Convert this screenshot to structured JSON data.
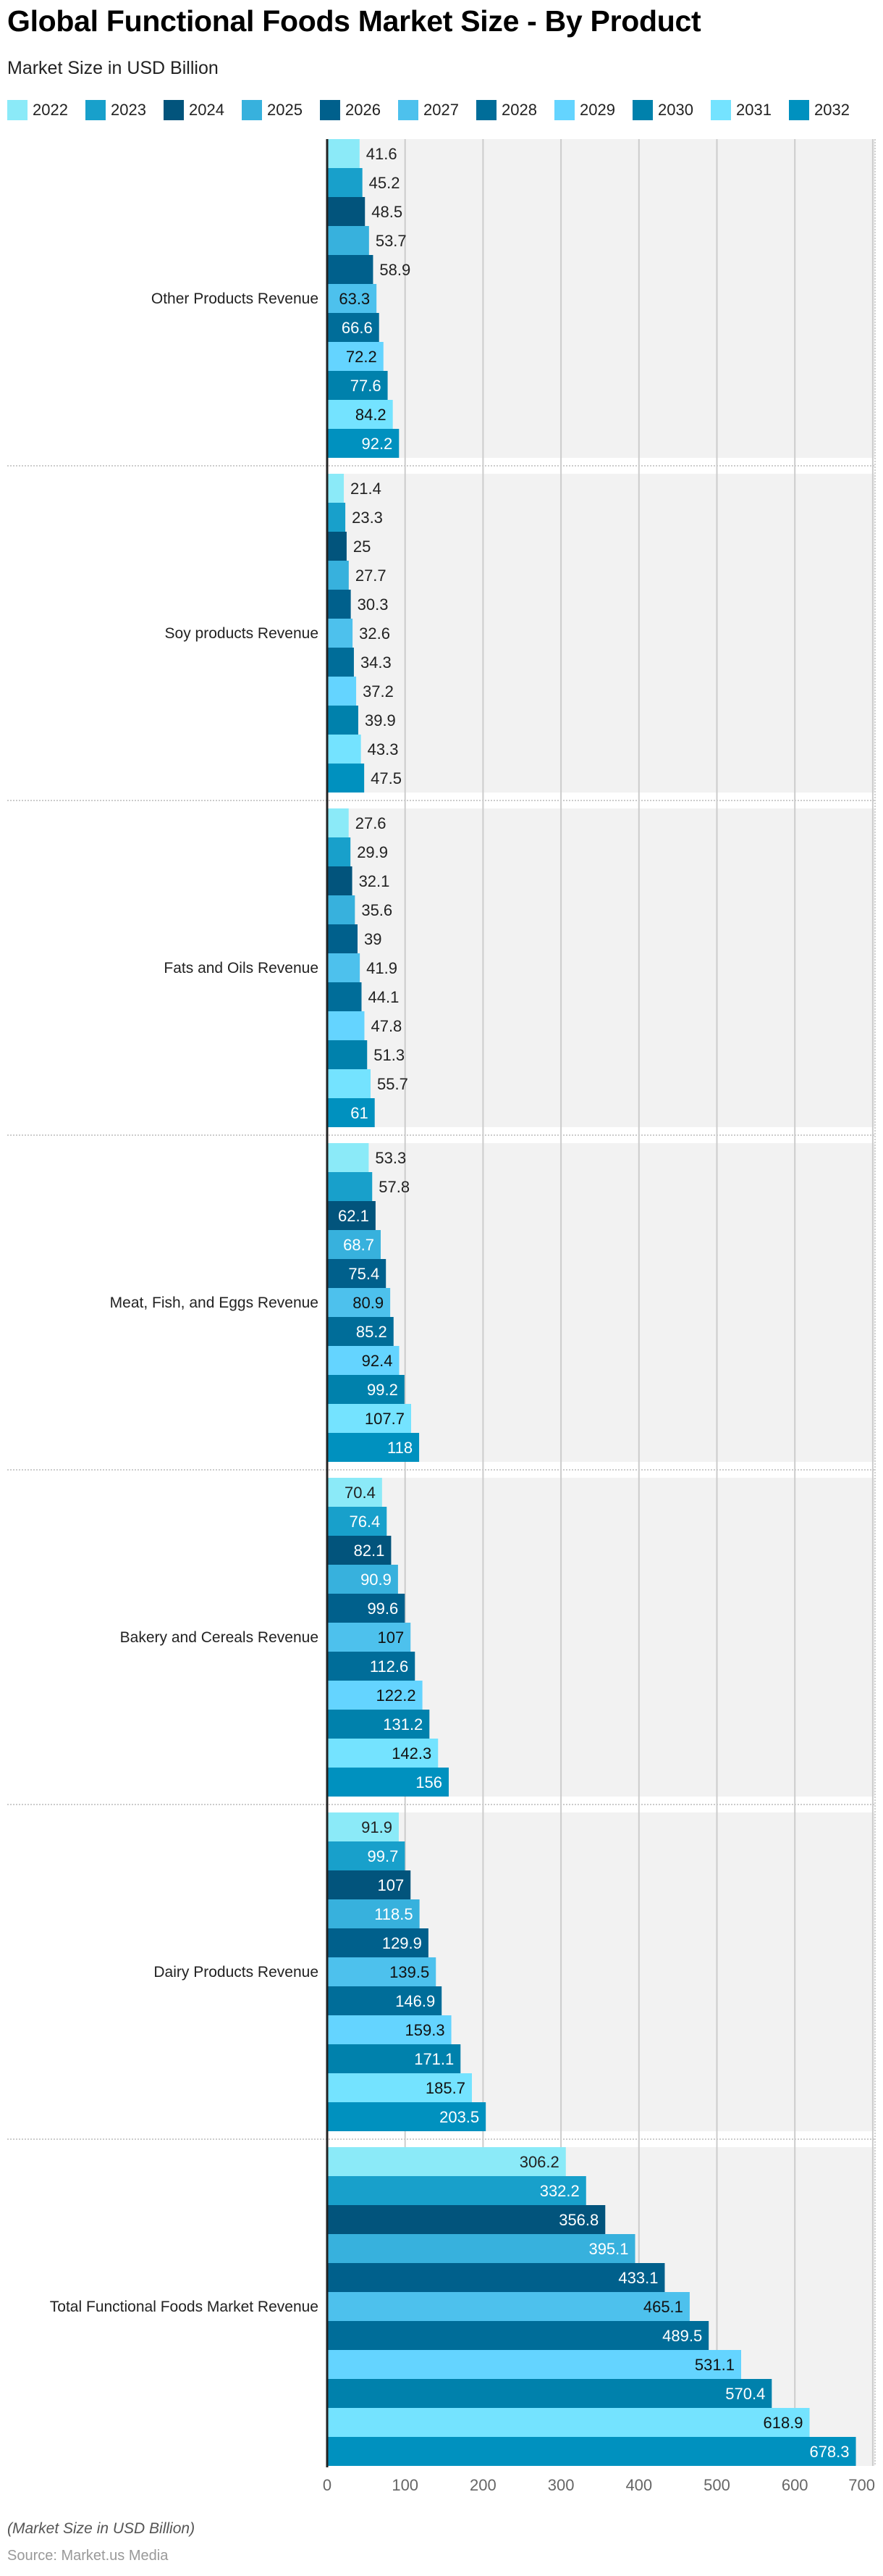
{
  "title": "Global Functional Foods Market Size - By Product",
  "subtitle": "Market Size in USD Billion",
  "footnote": "(Market Size in USD Billion)",
  "source": "Source: Market.us Media",
  "chart_data": {
    "type": "bar",
    "orientation": "horizontal",
    "title": "Global Functional Foods Market Size - By Product",
    "subtitle": "Market Size in USD Billion",
    "xlabel": "",
    "ylabel": "",
    "xlim": [
      0,
      700
    ],
    "x_ticks": [
      "0",
      "100",
      "200",
      "300",
      "400",
      "500",
      "600",
      "700"
    ],
    "grid": true,
    "legend_position": "top-left",
    "categories": [
      "Other Products Revenue",
      "Soy products Revenue",
      "Fats and Oils Revenue",
      "Meat, Fish, and Eggs Revenue",
      "Bakery and Cereals Revenue",
      "Dairy Products Revenue",
      "Total Functional Foods Market Revenue"
    ],
    "series": [
      {
        "name": "2022",
        "color": "#8BEAF8",
        "label_color": "#222222",
        "values": [
          41.6,
          21.4,
          27.6,
          53.3,
          70.4,
          91.9,
          306.2
        ]
      },
      {
        "name": "2023",
        "color": "#18A0CB",
        "label_color": "#ffffff",
        "values": [
          45.2,
          23.3,
          29.9,
          57.8,
          76.4,
          99.7,
          332.2
        ]
      },
      {
        "name": "2024",
        "color": "#02547C",
        "label_color": "#ffffff",
        "values": [
          48.5,
          25,
          32.1,
          62.1,
          82.1,
          107,
          356.8
        ]
      },
      {
        "name": "2025",
        "color": "#37B1DD",
        "label_color": "#ffffff",
        "values": [
          53.7,
          27.7,
          35.6,
          68.7,
          90.9,
          118.5,
          395.1
        ]
      },
      {
        "name": "2026",
        "color": "#00608C",
        "label_color": "#ffffff",
        "values": [
          58.9,
          30.3,
          39,
          75.4,
          99.6,
          129.9,
          433.1
        ]
      },
      {
        "name": "2027",
        "color": "#4DC1ED",
        "label_color": "#111111",
        "values": [
          63.3,
          32.6,
          41.9,
          80.9,
          107,
          139.5,
          465.1
        ]
      },
      {
        "name": "2028",
        "color": "#006D99",
        "label_color": "#ffffff",
        "values": [
          66.6,
          34.3,
          44.1,
          85.2,
          112.6,
          146.9,
          489.5
        ]
      },
      {
        "name": "2029",
        "color": "#64D4FF",
        "label_color": "#111111",
        "values": [
          72.2,
          37.2,
          47.8,
          92.4,
          122.2,
          159.3,
          531.1
        ]
      },
      {
        "name": "2030",
        "color": "#0081AC",
        "label_color": "#ffffff",
        "values": [
          77.6,
          39.9,
          51.3,
          99.2,
          131.2,
          171.1,
          570.4
        ]
      },
      {
        "name": "2031",
        "color": "#74E3FF",
        "label_color": "#111111",
        "values": [
          84.2,
          43.3,
          55.7,
          107.7,
          142.3,
          185.7,
          618.9
        ]
      },
      {
        "name": "2032",
        "color": "#0091BF",
        "label_color": "#ffffff",
        "values": [
          92.2,
          47.5,
          61,
          118,
          156,
          203.5,
          678.3
        ]
      }
    ]
  }
}
